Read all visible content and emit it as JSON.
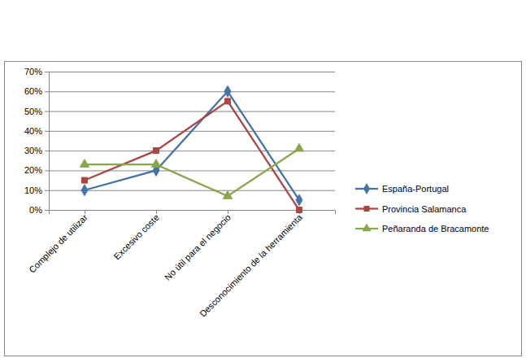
{
  "chart_data": {
    "type": "line",
    "categories": [
      "Complejo de utilizar",
      "Excesivo coste",
      "No útil para el negocio",
      "Desconocimiento de la herramienta"
    ],
    "series": [
      {
        "name": "España-Portugal",
        "color": "#4572a7",
        "marker": "diamond",
        "values": [
          10,
          20,
          60,
          5
        ]
      },
      {
        "name": "Provincia Salamanca",
        "color": "#aa4643",
        "marker": "square",
        "values": [
          15,
          30,
          55,
          0
        ]
      },
      {
        "name": "Peñaranda de Bracamonte",
        "color": "#89a54e",
        "marker": "triangle",
        "values": [
          23,
          23,
          7,
          31
        ]
      }
    ],
    "ylim": [
      0,
      70
    ],
    "yticks": [
      {
        "value": 0,
        "label": "0%"
      },
      {
        "value": 10,
        "label": "10%"
      },
      {
        "value": 20,
        "label": "20%"
      },
      {
        "value": 30,
        "label": "30%"
      },
      {
        "value": 40,
        "label": "40%"
      },
      {
        "value": 50,
        "label": "50%"
      },
      {
        "value": 60,
        "label": "60%"
      },
      {
        "value": 70,
        "label": "70%"
      }
    ],
    "grid": true,
    "legend": "right"
  }
}
